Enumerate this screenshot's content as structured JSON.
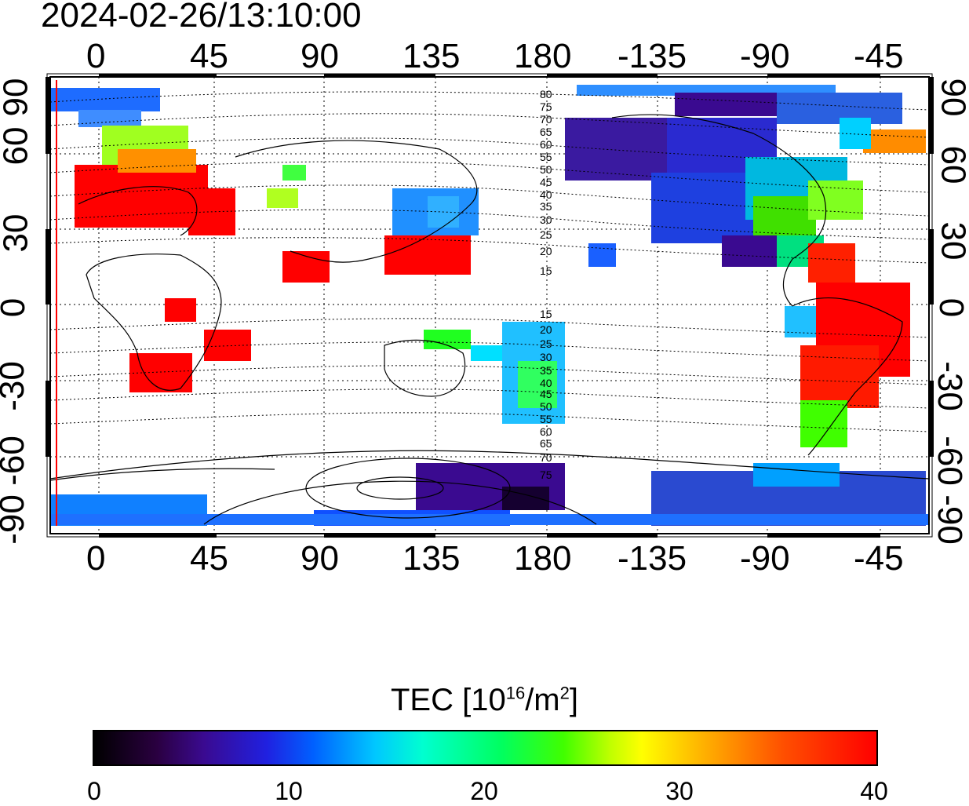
{
  "title": "2024-02-26/13:10:00",
  "map": {
    "x_ticks_top": [
      "0",
      "45",
      "90",
      "135",
      "180",
      "-135",
      "-90",
      "-45"
    ],
    "x_ticks_bottom": [
      "0",
      "45",
      "90",
      "135",
      "180",
      "-135",
      "-90",
      "-45"
    ],
    "y_ticks_left": [
      "90",
      "60",
      "30",
      "0",
      "-30",
      "-60",
      "-90"
    ],
    "y_ticks_right": [
      "90",
      "60",
      "30",
      "0",
      "-30",
      "-60",
      "-90"
    ],
    "contour_labels": [
      "80",
      "75",
      "70",
      "65",
      "60",
      "55",
      "50",
      "45",
      "40",
      "35",
      "30",
      "25",
      "20",
      "15",
      "15",
      "20",
      "25",
      "30",
      "35",
      "40",
      "45",
      "50",
      "55",
      "60",
      "65",
      "70",
      "75"
    ],
    "colors": {
      "frame": "#000000",
      "grid": "#000000",
      "terminator": "#ff0000"
    }
  },
  "colorbar": {
    "title": "TEC  [10",
    "title_sup": "16",
    "title_mid": "/m",
    "title_sup2": "2",
    "title_end": "]",
    "labels": [
      "0",
      "10",
      "20",
      "30",
      "40"
    ]
  }
}
